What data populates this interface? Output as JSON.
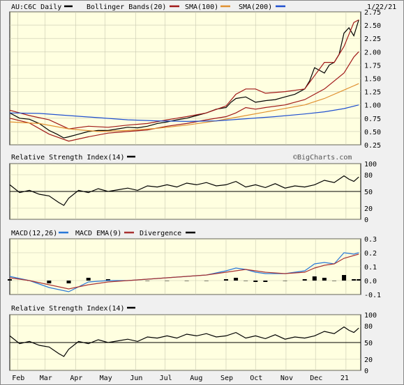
{
  "colors": {
    "background": "#f0f0f0",
    "plot_background": "#ffffe0",
    "grid": "#c8c8b0",
    "price": "#000000",
    "bollinger": "#a01818",
    "sma100": "#e09030",
    "sma200": "#2050d0",
    "macd": "#2878d8",
    "macd_ema": "#a83232",
    "divergence": "#000000"
  },
  "chart_data": [
    {
      "type": "line",
      "panel": "price",
      "title": "AU:C6C Daily",
      "date_label": "1/22/21",
      "legend": [
        "Bollinger Bands(20)",
        "SMA(100)",
        "SMA(200)"
      ],
      "watermark": "©BigCharts.com",
      "ylim": [
        0.25,
        2.75
      ],
      "yticks": [
        "2.75",
        "2.50",
        "2.25",
        "2.00",
        "1.75",
        "1.50",
        "1.25",
        "1.00",
        "0.75",
        "0.50",
        "0.25"
      ],
      "xticks": [
        "Feb",
        "Mar",
        "Apr",
        "May",
        "Jun",
        "Jul",
        "Aug",
        "Sep",
        "Oct",
        "Nov",
        "Dec",
        "21"
      ],
      "x_range_days": [
        0,
        357
      ],
      "xtick_days": [
        8,
        36,
        67,
        97,
        128,
        158,
        189,
        220,
        250,
        281,
        311,
        342
      ],
      "series": [
        {
          "name": "Price",
          "x": [
            0,
            10,
            20,
            30,
            40,
            48,
            55,
            60,
            70,
            80,
            90,
            100,
            110,
            120,
            130,
            140,
            150,
            160,
            170,
            180,
            190,
            200,
            210,
            220,
            225,
            230,
            240,
            250,
            260,
            270,
            280,
            290,
            300,
            305,
            310,
            315,
            320,
            325,
            330,
            335,
            340,
            345,
            350,
            355
          ],
          "values": [
            0.85,
            0.75,
            0.73,
            0.65,
            0.52,
            0.45,
            0.38,
            0.4,
            0.45,
            0.5,
            0.52,
            0.52,
            0.55,
            0.58,
            0.57,
            0.6,
            0.65,
            0.68,
            0.72,
            0.75,
            0.8,
            0.85,
            0.92,
            0.95,
            1.05,
            1.12,
            1.15,
            1.05,
            1.08,
            1.1,
            1.15,
            1.2,
            1.3,
            1.45,
            1.7,
            1.65,
            1.6,
            1.75,
            1.8,
            1.95,
            2.35,
            2.45,
            2.3,
            2.6
          ]
        },
        {
          "name": "Bollinger Upper",
          "x": [
            0,
            20,
            40,
            60,
            80,
            100,
            120,
            140,
            160,
            180,
            200,
            220,
            230,
            240,
            250,
            260,
            280,
            300,
            310,
            320,
            330,
            340,
            350,
            355
          ],
          "values": [
            0.9,
            0.8,
            0.72,
            0.55,
            0.6,
            0.58,
            0.62,
            0.65,
            0.72,
            0.78,
            0.85,
            0.98,
            1.2,
            1.3,
            1.3,
            1.22,
            1.25,
            1.3,
            1.55,
            1.8,
            1.8,
            2.1,
            2.55,
            2.6
          ]
        },
        {
          "name": "Bollinger Lower",
          "x": [
            0,
            20,
            40,
            60,
            80,
            100,
            120,
            140,
            160,
            180,
            200,
            220,
            230,
            240,
            250,
            260,
            280,
            300,
            310,
            320,
            330,
            340,
            350,
            355
          ],
          "values": [
            0.75,
            0.66,
            0.45,
            0.32,
            0.4,
            0.47,
            0.5,
            0.53,
            0.6,
            0.65,
            0.72,
            0.78,
            0.85,
            0.95,
            0.92,
            0.95,
            1.0,
            1.1,
            1.2,
            1.3,
            1.45,
            1.6,
            1.9,
            2.0
          ]
        },
        {
          "name": "SMA(100)",
          "x": [
            0,
            30,
            60,
            90,
            120,
            150,
            180,
            210,
            240,
            270,
            300,
            320,
            340,
            355
          ],
          "values": [
            0.68,
            0.65,
            0.55,
            0.5,
            0.52,
            0.56,
            0.62,
            0.7,
            0.8,
            0.9,
            1.0,
            1.12,
            1.28,
            1.4
          ]
        },
        {
          "name": "SMA(200)",
          "x": [
            0,
            30,
            60,
            90,
            120,
            150,
            180,
            210,
            240,
            270,
            300,
            320,
            340,
            355
          ],
          "values": [
            0.85,
            0.84,
            0.8,
            0.76,
            0.72,
            0.7,
            0.69,
            0.7,
            0.74,
            0.78,
            0.83,
            0.87,
            0.93,
            1.0
          ]
        }
      ]
    },
    {
      "type": "line",
      "panel": "rsi",
      "title": "Relative Strength Index(14)",
      "ylim": [
        0,
        100
      ],
      "yticks": [
        "100",
        "80",
        "50",
        "20",
        "0"
      ],
      "reference_line": 50,
      "series": [
        {
          "name": "RSI",
          "x": [
            0,
            10,
            20,
            30,
            40,
            50,
            55,
            60,
            70,
            80,
            90,
            100,
            110,
            120,
            130,
            140,
            150,
            160,
            170,
            180,
            190,
            200,
            210,
            220,
            230,
            240,
            250,
            260,
            270,
            280,
            290,
            300,
            310,
            320,
            330,
            340,
            345,
            350,
            355
          ],
          "values": [
            62,
            48,
            52,
            45,
            42,
            30,
            25,
            38,
            52,
            48,
            55,
            50,
            53,
            56,
            52,
            60,
            58,
            62,
            58,
            65,
            62,
            66,
            60,
            62,
            68,
            58,
            62,
            57,
            64,
            56,
            60,
            58,
            62,
            70,
            66,
            78,
            72,
            68,
            76
          ]
        }
      ]
    },
    {
      "type": "line",
      "panel": "macd",
      "legend": [
        "MACD(12,26)",
        "MACD EMA(9)",
        "Divergence"
      ],
      "ylim": [
        -0.1,
        0.3
      ],
      "yticks": [
        "0.3",
        "0.2",
        "0.1",
        "0.0",
        "-0.1"
      ],
      "series": [
        {
          "name": "MACD(12,26)",
          "x": [
            0,
            20,
            40,
            60,
            80,
            100,
            120,
            140,
            160,
            180,
            200,
            220,
            230,
            240,
            250,
            260,
            280,
            300,
            310,
            320,
            330,
            340,
            350,
            355
          ],
          "values": [
            0.03,
            0.0,
            -0.05,
            -0.08,
            -0.01,
            0.0,
            0.0,
            0.01,
            0.02,
            0.03,
            0.04,
            0.07,
            0.09,
            0.08,
            0.06,
            0.05,
            0.05,
            0.07,
            0.12,
            0.13,
            0.12,
            0.2,
            0.19,
            0.2
          ]
        },
        {
          "name": "MACD EMA(9)",
          "x": [
            0,
            20,
            40,
            60,
            80,
            100,
            120,
            140,
            160,
            180,
            200,
            220,
            230,
            240,
            250,
            260,
            280,
            300,
            310,
            320,
            330,
            340,
            350,
            355
          ],
          "values": [
            0.02,
            0.0,
            -0.03,
            -0.06,
            -0.03,
            -0.01,
            0.0,
            0.01,
            0.02,
            0.03,
            0.04,
            0.06,
            0.07,
            0.08,
            0.07,
            0.06,
            0.05,
            0.06,
            0.09,
            0.11,
            0.12,
            0.16,
            0.18,
            0.19
          ]
        }
      ]
    },
    {
      "type": "line",
      "panel": "rsi2",
      "title": "Relative Strength Index(14)",
      "ylim": [
        0,
        100
      ],
      "yticks": [
        "100",
        "80",
        "50",
        "20",
        "0"
      ],
      "reference_line": 50,
      "series": [
        {
          "name": "RSI",
          "x": [
            0,
            10,
            20,
            30,
            40,
            50,
            55,
            60,
            70,
            80,
            90,
            100,
            110,
            120,
            130,
            140,
            150,
            160,
            170,
            180,
            190,
            200,
            210,
            220,
            230,
            240,
            250,
            260,
            270,
            280,
            290,
            300,
            310,
            320,
            330,
            340,
            345,
            350,
            355
          ],
          "values": [
            62,
            48,
            52,
            45,
            42,
            30,
            25,
            38,
            52,
            48,
            55,
            50,
            53,
            56,
            52,
            60,
            58,
            62,
            58,
            65,
            62,
            66,
            60,
            62,
            68,
            58,
            62,
            57,
            64,
            56,
            60,
            58,
            62,
            70,
            66,
            78,
            72,
            68,
            76
          ]
        }
      ]
    }
  ]
}
